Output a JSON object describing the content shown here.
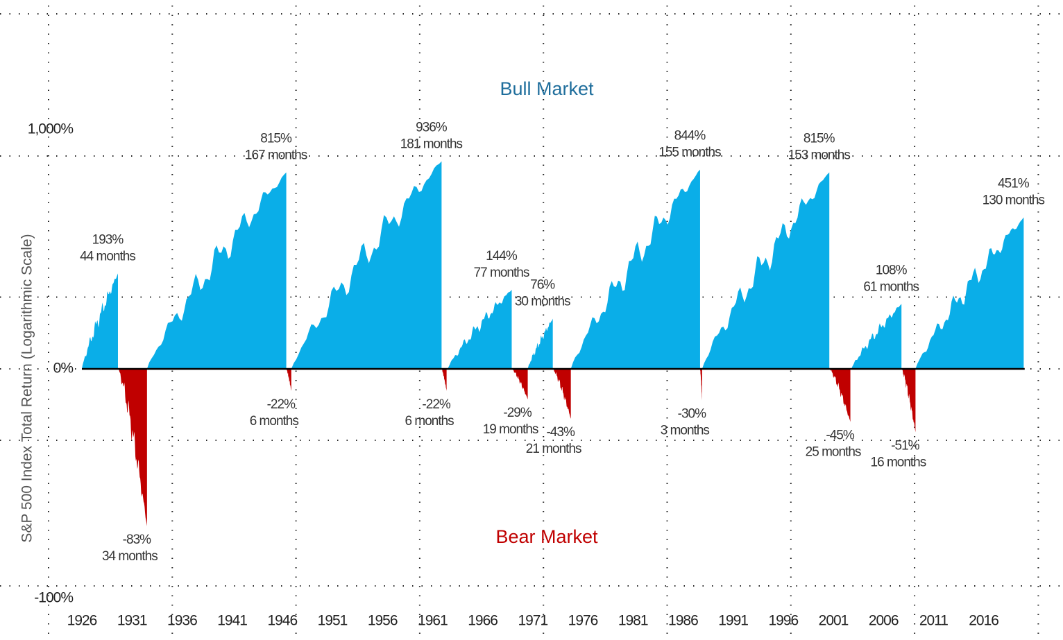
{
  "chart_data": {
    "type": "market-cycles",
    "y_label": "S&P 500 Index Total Return (Logarithmic Scale)",
    "log_scale": true,
    "grid": true,
    "xlim": [
      1925.7,
      2020.1
    ],
    "xticks": [
      1926,
      1931,
      1936,
      1941,
      1946,
      1951,
      1956,
      1961,
      1966,
      1971,
      1976,
      1981,
      1986,
      1991,
      1996,
      2001,
      2006,
      2011,
      2016
    ],
    "ylim": [
      -100,
      1000
    ],
    "yticks": [
      -100,
      0,
      {
        "value": 1000,
        "label": "1,000%"
      }
    ],
    "ytick_labels": [
      "-100%",
      "0%",
      "1,000%"
    ],
    "series": [
      {
        "name": "Bull Market",
        "color": "#0aaee8",
        "start": [
          1926.0,
          1932.5,
          1946.9,
          1962.5,
          1970.5,
          1974.8,
          1987.9,
          2002.8,
          2009.2
        ],
        "end": [
          1929.6,
          1946.4,
          1961.9,
          1968.9,
          1973.0,
          1987.7,
          2000.6,
          2007.8,
          2020.0
        ],
        "values": [
          193,
          815,
          936,
          144,
          76,
          844,
          815,
          108,
          451
        ],
        "value_labels": [
          "193%",
          "815%",
          "936%",
          "144%",
          "76%",
          "844%",
          "815%",
          "108%",
          "451%"
        ],
        "durations": [
          "44 months",
          "167 months",
          "181 months",
          "77 months",
          "30 months",
          "155 months",
          "153 months",
          "61 months",
          "130 months"
        ]
      },
      {
        "name": "Bear Market",
        "color": "#c00000",
        "start": [
          1929.6,
          1946.4,
          1961.9,
          1968.9,
          1973.0,
          1987.7,
          2000.6,
          2007.8
        ],
        "end": [
          1932.5,
          1946.9,
          1962.4,
          1970.5,
          1974.8,
          1987.9,
          2002.7,
          2009.2
        ],
        "values": [
          -83,
          -22,
          -22,
          -29,
          -43,
          -30,
          -45,
          -51
        ],
        "value_labels": [
          "-83%",
          "-22%",
          "-22%",
          "-29%",
          "-43%",
          "-30%",
          "-45%",
          "-51%"
        ],
        "durations": [
          "34 months",
          "6 months",
          "6 months",
          "19 months",
          "21 months",
          "3 months",
          "25 months",
          "16 months"
        ]
      }
    ]
  }
}
